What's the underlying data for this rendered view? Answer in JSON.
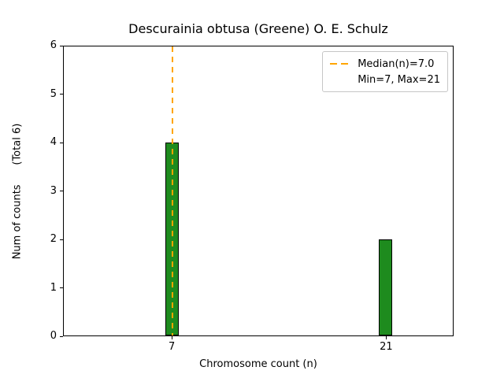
{
  "figure": {
    "background": "#ffffff"
  },
  "chart_data": {
    "type": "bar",
    "title": "Descurainia obtusa (Greene) O. E. Schulz",
    "xlabel": "Chromosome count (n)",
    "ylabel": "Num of counts      (Total 6)",
    "x": [
      7,
      21
    ],
    "values": [
      4,
      2
    ],
    "xticks": [
      7,
      21
    ],
    "yticks": [
      0,
      1,
      2,
      3,
      4,
      5,
      6
    ],
    "xlim": [
      -0.1,
      25.4
    ],
    "ylim": [
      0,
      6
    ],
    "bar_width": 0.9,
    "bar_color": "#1e8b1e",
    "bar_edge_color": "#000000",
    "grid": false,
    "median_line": {
      "x": 7,
      "color": "#ffa500",
      "style": "dashed"
    },
    "legend_position": "upper right",
    "legend": {
      "entries": [
        {
          "label": "Median(n)=7.0",
          "handle": "dashed-line"
        },
        {
          "label": "Min=7, Max=21",
          "handle": "none"
        }
      ]
    }
  }
}
